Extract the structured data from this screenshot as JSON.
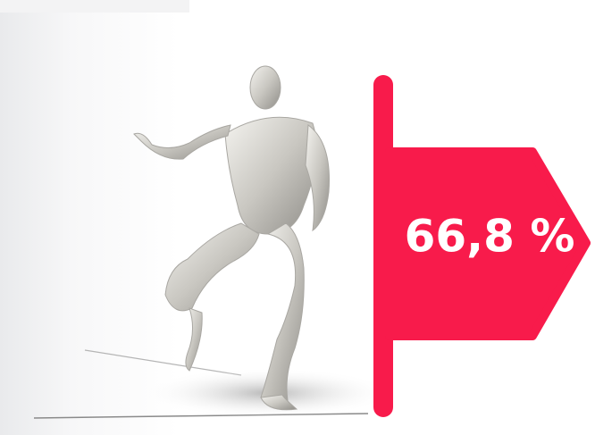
{
  "badge": {
    "label": "66,8 %"
  }
}
